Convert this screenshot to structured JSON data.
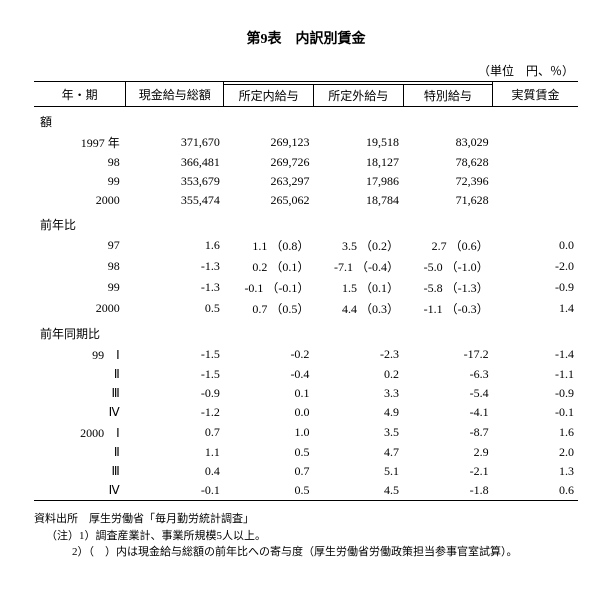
{
  "title": "第9表　内訳別賃金",
  "unit": "（単位　円、％）",
  "header": {
    "period": "年・期",
    "total": "現金給与総額",
    "sub_inside": "所定内給与",
    "sub_outside": "所定外給与",
    "sub_special": "特別給与",
    "real": "実質賃金"
  },
  "sections": [
    {
      "label": "額",
      "rows": [
        {
          "period": "1997 年",
          "total": "371,670",
          "inside": "269,123",
          "outside": "19,518",
          "special": "83,029",
          "real": ""
        },
        {
          "period": "98",
          "total": "366,481",
          "inside": "269,726",
          "outside": "18,127",
          "special": "78,628",
          "real": ""
        },
        {
          "period": "99",
          "total": "353,679",
          "inside": "263,297",
          "outside": "17,986",
          "special": "72,396",
          "real": ""
        },
        {
          "period": "2000",
          "total": "355,474",
          "inside": "265,062",
          "outside": "18,784",
          "special": "71,628",
          "real": ""
        }
      ]
    },
    {
      "label": "前年比",
      "rows": [
        {
          "period": "97",
          "total": "1.6",
          "inside": "1.1  （0.8）",
          "outside": "3.5  （0.2）",
          "special": "2.7  （0.6）",
          "real": "0.0"
        },
        {
          "period": "98",
          "total": "-1.3",
          "inside": "0.2  （0.1）",
          "outside": "-7.1 （-0.4）",
          "special": "-5.0 （-1.0）",
          "real": "-2.0"
        },
        {
          "period": "99",
          "total": "-1.3",
          "inside": "-0.1 （-0.1）",
          "outside": "1.5  （0.1）",
          "special": "-5.8 （-1.3）",
          "real": "-0.9"
        },
        {
          "period": "2000",
          "total": "0.5",
          "inside": "0.7  （0.5）",
          "outside": "4.4  （0.3）",
          "special": "-1.1 （-0.3）",
          "real": "1.4"
        }
      ]
    },
    {
      "label": "前年同期比",
      "rows": [
        {
          "period": "99　Ⅰ",
          "total": "-1.5",
          "inside": "-0.2",
          "outside": "-2.3",
          "special": "-17.2",
          "real": "-1.4"
        },
        {
          "period": "Ⅱ",
          "total": "-1.5",
          "inside": "-0.4",
          "outside": "0.2",
          "special": "-6.3",
          "real": "-1.1"
        },
        {
          "period": "Ⅲ",
          "total": "-0.9",
          "inside": "0.1",
          "outside": "3.3",
          "special": "-5.4",
          "real": "-0.9"
        },
        {
          "period": "Ⅳ",
          "total": "-1.2",
          "inside": "0.0",
          "outside": "4.9",
          "special": "-4.1",
          "real": "-0.1"
        },
        {
          "period": "2000　Ⅰ",
          "total": "0.7",
          "inside": "1.0",
          "outside": "3.5",
          "special": "-8.7",
          "real": "1.6"
        },
        {
          "period": "Ⅱ",
          "total": "1.1",
          "inside": "0.5",
          "outside": "4.7",
          "special": "2.9",
          "real": "2.0"
        },
        {
          "period": "Ⅲ",
          "total": "0.4",
          "inside": "0.7",
          "outside": "5.1",
          "special": "-2.1",
          "real": "1.3"
        },
        {
          "period": "Ⅳ",
          "total": "-0.1",
          "inside": "0.5",
          "outside": "4.5",
          "special": "-1.8",
          "real": "0.6"
        }
      ]
    }
  ],
  "sources": {
    "line1": "資料出所　厚生労働省「毎月勤労統計調査」",
    "line2": "（注）1）調査産業計、事業所規模5人以上。",
    "line3": "2）（　）内は現金給与総額の前年比への寄与度（厚生労働省労働政策担当参事官室試算）。"
  }
}
